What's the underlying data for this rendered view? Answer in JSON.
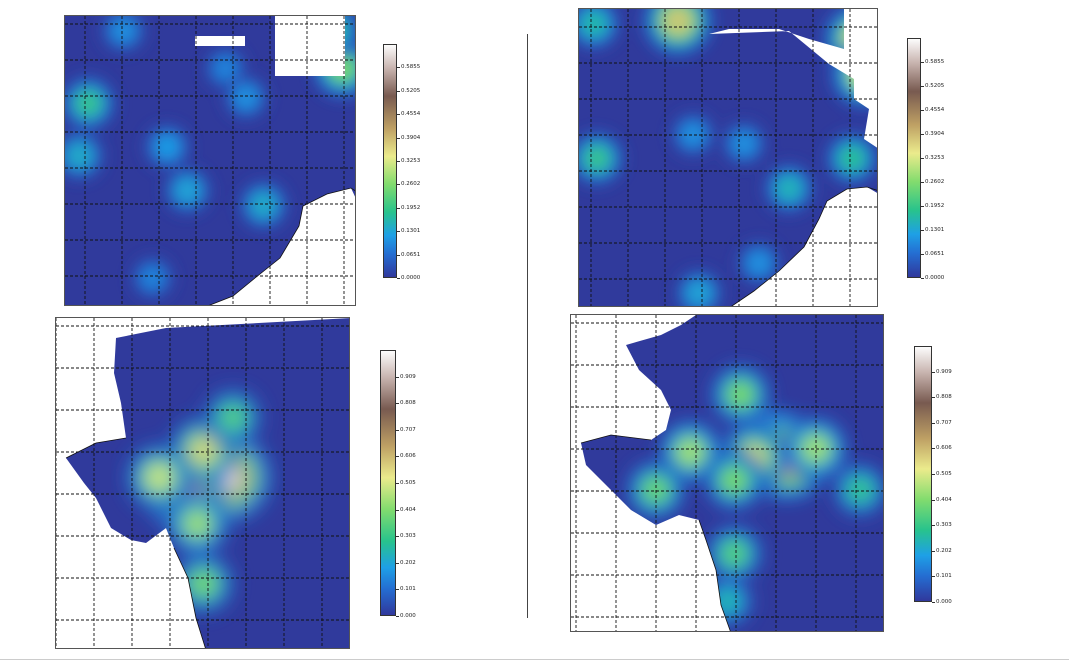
{
  "figure": {
    "panels": [
      {
        "id": "top-left",
        "colorbar": {
          "ticks": [
            "0.0000",
            "0.0651",
            "0.1301",
            "0.1952",
            "0.2602",
            "0.3253",
            "0.3904",
            "0.4554",
            "0.5205",
            "0.5855"
          ],
          "min": 0.0,
          "max": 0.6506
        },
        "hotspots": [
          [
            0.08,
            0.3,
            0.3
          ],
          [
            0.05,
            0.48,
            0.22
          ],
          [
            0.35,
            0.45,
            0.18
          ],
          [
            0.42,
            0.6,
            0.2
          ],
          [
            0.68,
            0.65,
            0.22
          ],
          [
            0.95,
            0.18,
            0.4
          ],
          [
            0.92,
            0.05,
            0.28
          ],
          [
            0.55,
            0.18,
            0.14
          ],
          [
            0.2,
            0.05,
            0.16
          ],
          [
            0.62,
            0.28,
            0.16
          ],
          [
            0.3,
            0.9,
            0.14
          ]
        ]
      },
      {
        "id": "top-right",
        "colorbar": {
          "ticks": [
            "0.0000",
            "0.0651",
            "0.1301",
            "0.1952",
            "0.2602",
            "0.3253",
            "0.3904",
            "0.4554",
            "0.5205",
            "0.5855"
          ],
          "min": 0.0,
          "max": 0.6506
        },
        "hotspots": [
          [
            0.33,
            0.04,
            0.58
          ],
          [
            0.05,
            0.05,
            0.26
          ],
          [
            0.93,
            0.1,
            0.55
          ],
          [
            0.95,
            0.22,
            0.5
          ],
          [
            0.91,
            0.5,
            0.28
          ],
          [
            0.06,
            0.5,
            0.3
          ],
          [
            0.38,
            0.42,
            0.16
          ],
          [
            0.7,
            0.6,
            0.24
          ],
          [
            0.55,
            0.45,
            0.16
          ],
          [
            0.4,
            0.95,
            0.2
          ],
          [
            0.6,
            0.85,
            0.16
          ]
        ]
      },
      {
        "id": "bottom-left",
        "colorbar": {
          "ticks": [
            "0.000",
            "0.101",
            "0.202",
            "0.303",
            "0.404",
            "0.505",
            "0.606",
            "0.707",
            "0.808",
            "0.909"
          ],
          "min": 0.0,
          "max": 1.01
        },
        "hotspots": [
          [
            0.58,
            0.48,
            0.98
          ],
          [
            0.44,
            0.52,
            0.85
          ],
          [
            0.5,
            0.4,
            0.55
          ],
          [
            0.35,
            0.48,
            0.5
          ],
          [
            0.48,
            0.62,
            0.45
          ],
          [
            0.6,
            0.3,
            0.35
          ],
          [
            0.5,
            0.8,
            0.4
          ]
        ]
      },
      {
        "id": "bottom-right",
        "colorbar": {
          "ticks": [
            "0.000",
            "0.101",
            "0.202",
            "0.303",
            "0.404",
            "0.505",
            "0.606",
            "0.707",
            "0.808",
            "0.909"
          ],
          "min": 0.0,
          "max": 1.01
        },
        "hotspots": [
          [
            0.65,
            0.43,
            0.88
          ],
          [
            0.69,
            0.45,
            0.9
          ],
          [
            0.58,
            0.45,
            0.55
          ],
          [
            0.38,
            0.43,
            0.45
          ],
          [
            0.52,
            0.52,
            0.4
          ],
          [
            0.27,
            0.55,
            0.38
          ],
          [
            0.54,
            0.25,
            0.4
          ],
          [
            0.78,
            0.42,
            0.45
          ],
          [
            0.92,
            0.55,
            0.3
          ],
          [
            0.52,
            0.75,
            0.35
          ],
          [
            0.5,
            0.9,
            0.25
          ]
        ]
      }
    ]
  }
}
